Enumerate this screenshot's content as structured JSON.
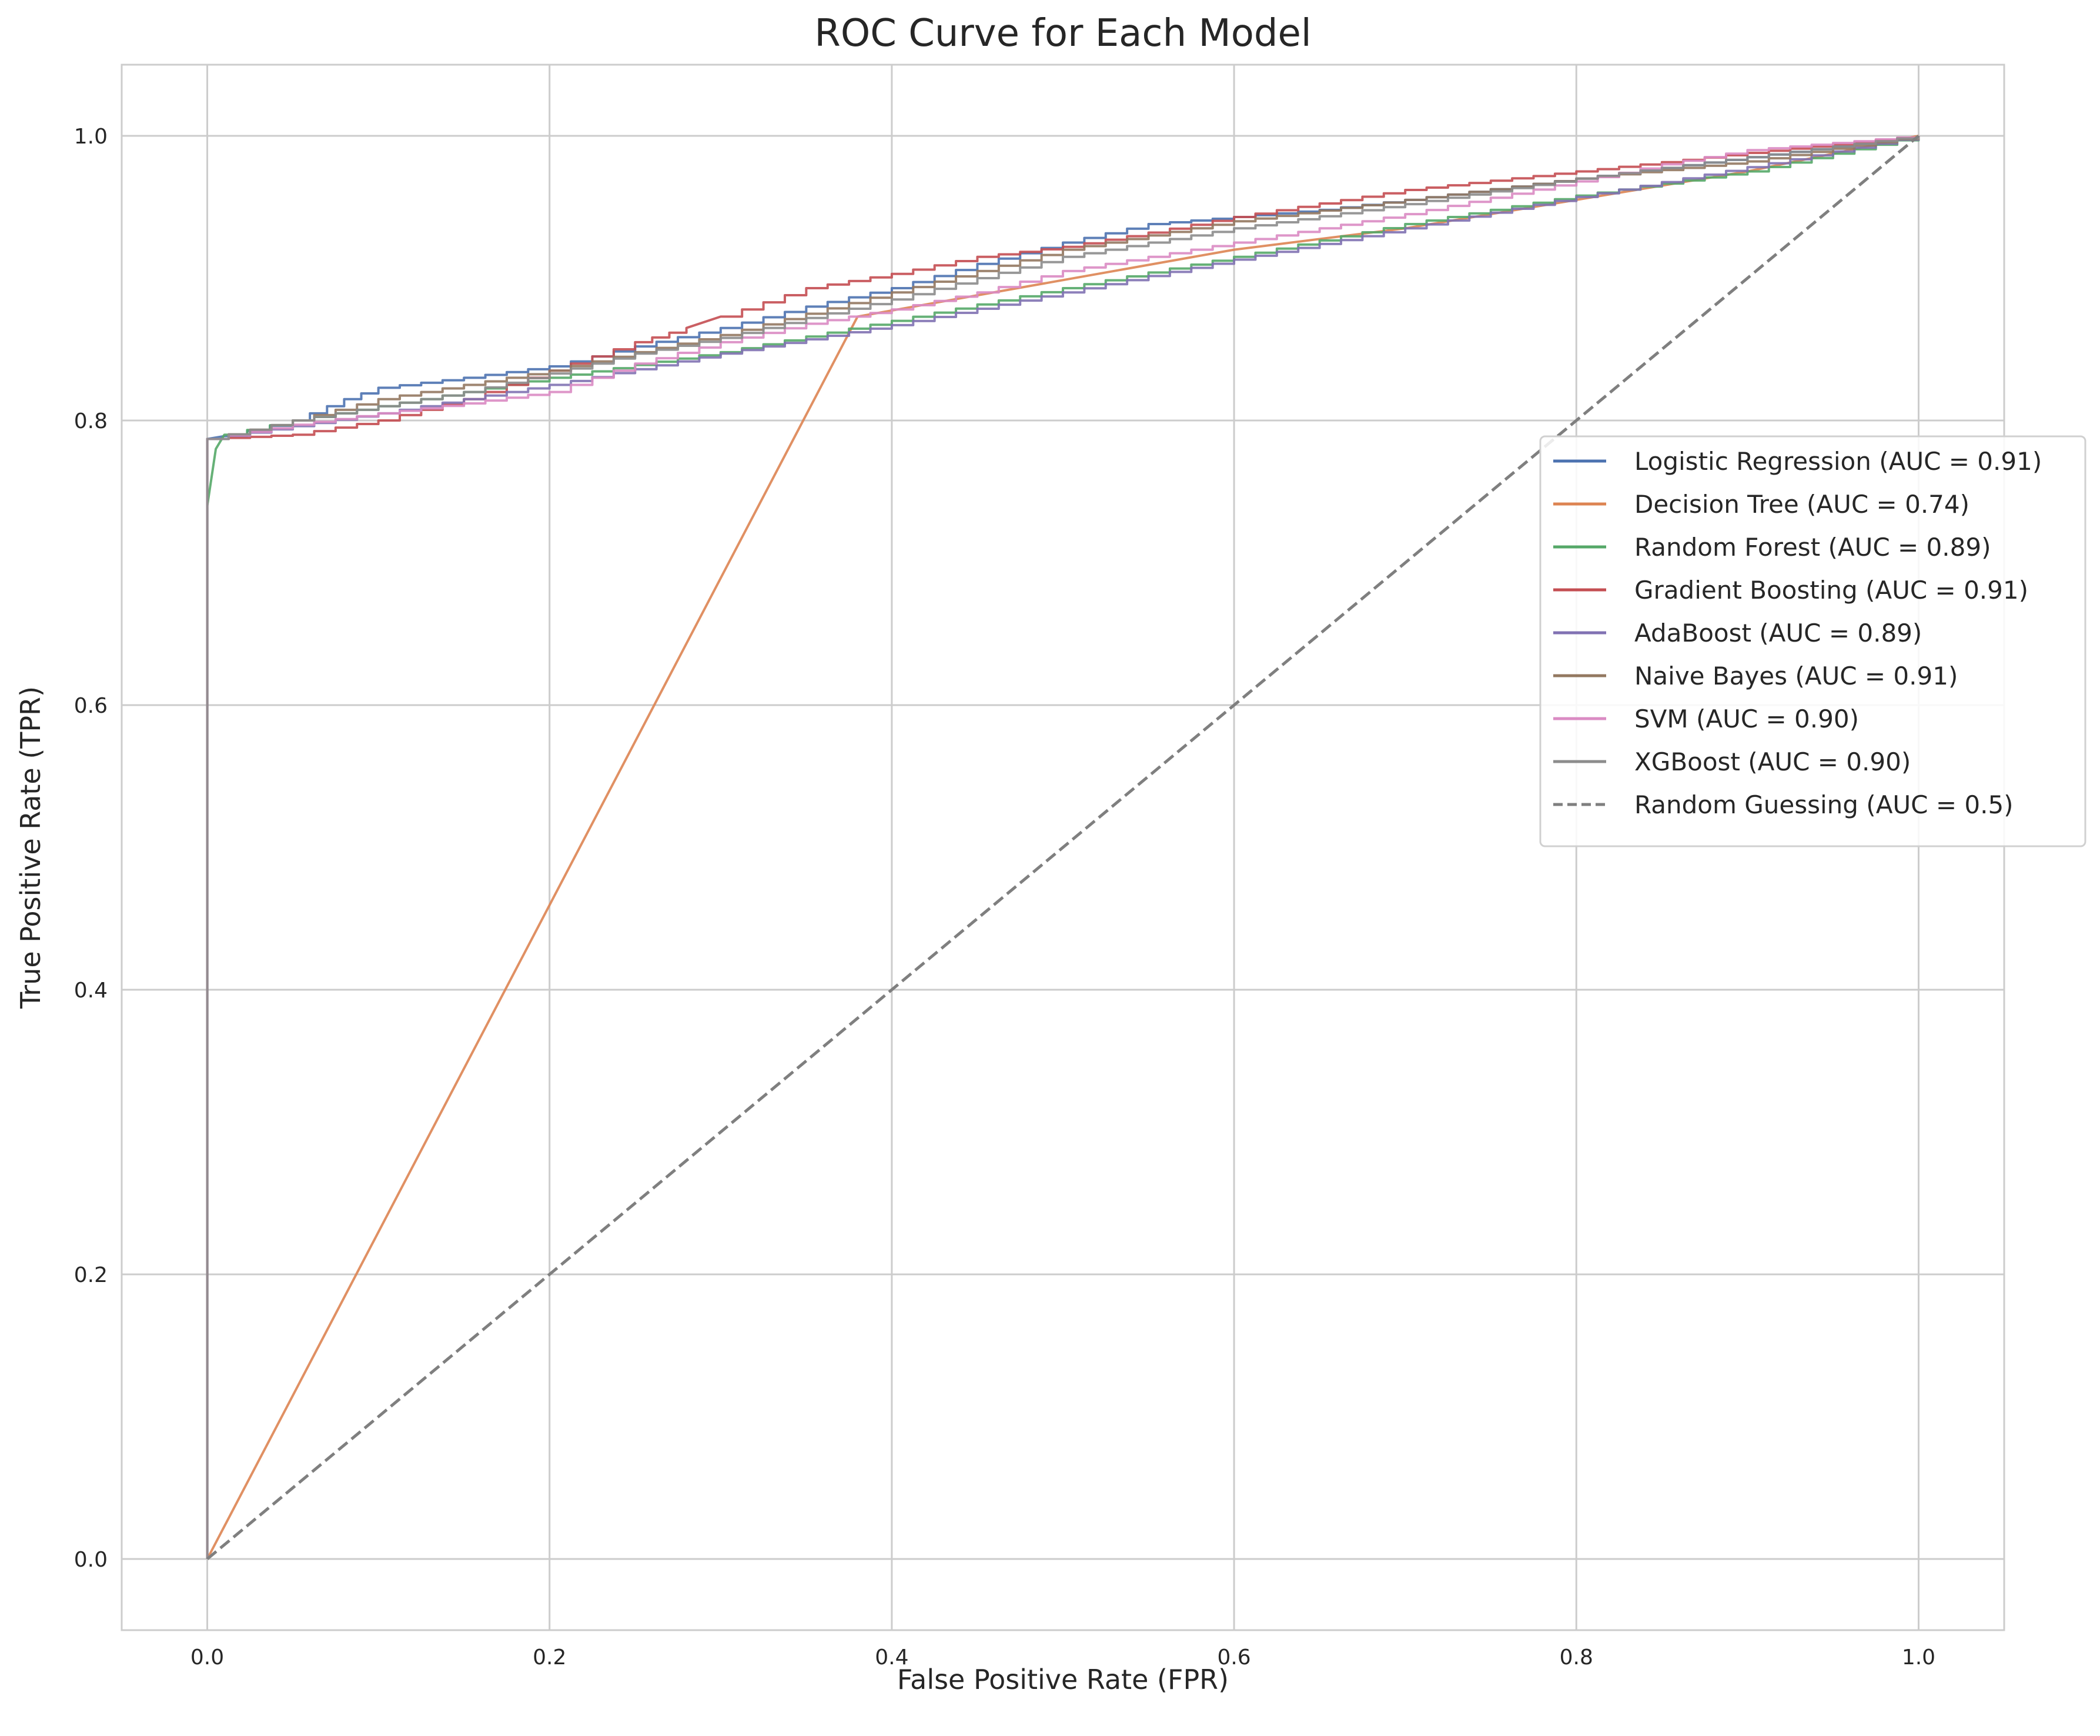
{
  "chart_data": {
    "type": "line",
    "title": "ROC Curve for Each Model",
    "xlabel": "False Positive Rate (FPR)",
    "ylabel": "True Positive Rate (TPR)",
    "xlim": [
      -0.05,
      1.05
    ],
    "ylim": [
      -0.05,
      1.05
    ],
    "xticks": [
      0.0,
      0.2,
      0.4,
      0.6,
      0.8,
      1.0
    ],
    "yticks": [
      0.0,
      0.2,
      0.4,
      0.6,
      0.8,
      1.0
    ],
    "xtick_labels": [
      "0.0",
      "0.2",
      "0.4",
      "0.6",
      "0.8",
      "1.0"
    ],
    "ytick_labels": [
      "0.0",
      "0.2",
      "0.4",
      "0.6",
      "0.8",
      "1.0"
    ],
    "grid": true,
    "legend_position": "center right",
    "series": [
      {
        "name": "Logistic Regression (AUC = 0.91)",
        "color": "#4c72b0",
        "dashed": false,
        "x": [
          0,
          0,
          0.01,
          0.05,
          0.08,
          0.1,
          0.15,
          0.2,
          0.25,
          0.3,
          0.35,
          0.4,
          0.45,
          0.5,
          0.55,
          0.6,
          0.65,
          0.7,
          0.8,
          0.9,
          1.0
        ],
        "y": [
          0,
          0.787,
          0.789,
          0.8,
          0.815,
          0.823,
          0.83,
          0.838,
          0.852,
          0.865,
          0.88,
          0.893,
          0.91,
          0.925,
          0.938,
          0.943,
          0.948,
          0.955,
          0.97,
          0.985,
          1.0
        ]
      },
      {
        "name": "Decision Tree (AUC = 0.74)",
        "color": "#dd8452",
        "dashed": false,
        "x": [
          0,
          0.38,
          0.6,
          0.7,
          0.8,
          0.9,
          1.0
        ],
        "y": [
          0,
          0.873,
          0.92,
          0.935,
          0.955,
          0.975,
          1.0
        ]
      },
      {
        "name": "Random Forest (AUC = 0.89)",
        "color": "#55a868",
        "dashed": false,
        "x": [
          0,
          0,
          0.005,
          0.01,
          0.05,
          0.1,
          0.2,
          0.3,
          0.4,
          0.5,
          0.6,
          0.7,
          0.8,
          0.9,
          1.0
        ],
        "y": [
          0,
          0.74,
          0.78,
          0.79,
          0.8,
          0.81,
          0.83,
          0.848,
          0.87,
          0.893,
          0.915,
          0.938,
          0.958,
          0.975,
          1.0
        ]
      },
      {
        "name": "Gradient Boosting (AUC = 0.91)",
        "color": "#c44e52",
        "dashed": false,
        "x": [
          0,
          0,
          0.05,
          0.1,
          0.15,
          0.2,
          0.25,
          0.28,
          0.3,
          0.35,
          0.4,
          0.45,
          0.5,
          0.55,
          0.6,
          0.7,
          0.8,
          0.9,
          1.0
        ],
        "y": [
          0,
          0.787,
          0.79,
          0.8,
          0.815,
          0.835,
          0.855,
          0.865,
          0.873,
          0.893,
          0.903,
          0.915,
          0.922,
          0.932,
          0.943,
          0.962,
          0.975,
          0.988,
          1.0
        ]
      },
      {
        "name": "AdaBoost (AUC = 0.89)",
        "color": "#8172b3",
        "dashed": false,
        "x": [
          0,
          0,
          0.1,
          0.2,
          0.3,
          0.4,
          0.5,
          0.6,
          0.7,
          0.8,
          0.9,
          1.0
        ],
        "y": [
          0,
          0.787,
          0.805,
          0.825,
          0.847,
          0.867,
          0.89,
          0.913,
          0.935,
          0.957,
          0.978,
          1.0
        ]
      },
      {
        "name": "Naive Bayes (AUC = 0.91)",
        "color": "#937860",
        "dashed": false,
        "x": [
          0,
          0,
          0.05,
          0.1,
          0.15,
          0.2,
          0.25,
          0.3,
          0.35,
          0.4,
          0.45,
          0.5,
          0.6,
          0.7,
          0.8,
          0.9,
          1.0
        ],
        "y": [
          0,
          0.787,
          0.8,
          0.815,
          0.825,
          0.835,
          0.848,
          0.86,
          0.875,
          0.89,
          0.905,
          0.92,
          0.94,
          0.955,
          0.97,
          0.982,
          1.0
        ]
      },
      {
        "name": "SVM (AUC = 0.90)",
        "color": "#da8bc3",
        "dashed": false,
        "x": [
          0,
          0,
          0.05,
          0.1,
          0.15,
          0.2,
          0.25,
          0.3,
          0.35,
          0.4,
          0.45,
          0.5,
          0.6,
          0.7,
          0.8,
          0.85,
          0.9,
          1.0
        ],
        "y": [
          0,
          0.787,
          0.797,
          0.805,
          0.812,
          0.82,
          0.84,
          0.855,
          0.868,
          0.878,
          0.89,
          0.905,
          0.925,
          0.945,
          0.968,
          0.98,
          0.99,
          1.0
        ]
      },
      {
        "name": "XGBoost (AUC = 0.90)",
        "color": "#8c8c8c",
        "dashed": false,
        "x": [
          0,
          0,
          0.05,
          0.1,
          0.15,
          0.2,
          0.25,
          0.3,
          0.35,
          0.4,
          0.45,
          0.5,
          0.6,
          0.7,
          0.8,
          0.9,
          1.0
        ],
        "y": [
          0,
          0.787,
          0.8,
          0.81,
          0.82,
          0.833,
          0.847,
          0.858,
          0.872,
          0.885,
          0.9,
          0.915,
          0.935,
          0.952,
          0.97,
          0.985,
          1.0
        ]
      },
      {
        "name": "Random Guessing (AUC = 0.5)",
        "color": "#7f7f7f",
        "dashed": true,
        "x": [
          0,
          1
        ],
        "y": [
          0,
          1
        ]
      }
    ]
  }
}
